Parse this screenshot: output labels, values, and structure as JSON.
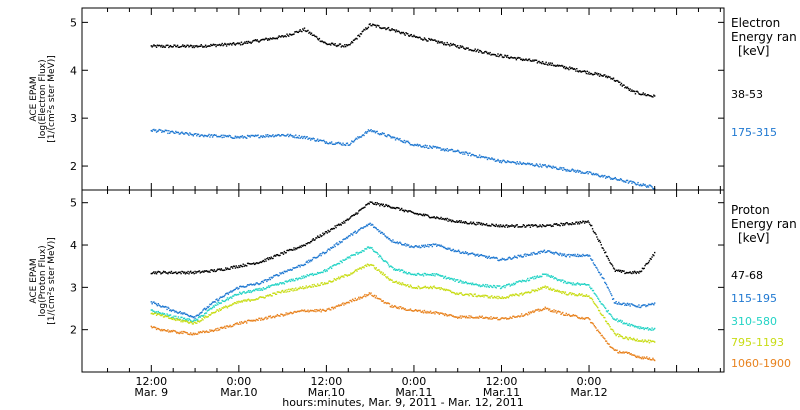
{
  "chart_data": [
    {
      "type": "scatter",
      "panel": "electron",
      "ylabel_lines": [
        "ACE EPAM",
        "log(Electron Flux)",
        "[1/(cm²s ster MeV)]"
      ],
      "ylim": [
        1.5,
        5.3
      ],
      "yticks": [
        2,
        3,
        4,
        5
      ],
      "legend_title": [
        "Electron",
        "Energy ran"
      ],
      "legend_unit": "[keV]",
      "x": [
        0,
        6,
        12,
        18,
        21,
        24,
        27,
        30,
        33,
        36,
        42,
        48,
        54,
        60,
        63,
        66,
        69
      ],
      "series": [
        {
          "name": "38-53",
          "color": "#000000",
          "values": [
            4.5,
            4.5,
            4.55,
            4.7,
            4.85,
            4.55,
            4.5,
            4.95,
            4.85,
            4.7,
            4.5,
            4.3,
            4.15,
            3.95,
            3.85,
            3.55,
            3.45
          ]
        },
        {
          "name": "175-315",
          "color": "#1f78d1",
          "values": [
            2.75,
            2.65,
            2.6,
            2.65,
            2.6,
            2.5,
            2.45,
            2.75,
            2.6,
            2.45,
            2.3,
            2.1,
            2.0,
            1.85,
            1.75,
            1.65,
            1.55
          ]
        }
      ]
    },
    {
      "type": "scatter",
      "panel": "proton",
      "ylabel_lines": [
        "ACE EPAM",
        "log(Proton Flux)",
        "[1/(cm²s ster MeV)]"
      ],
      "ylim": [
        1.0,
        5.3
      ],
      "yticks": [
        2,
        3,
        4,
        5
      ],
      "legend_title": [
        "Proton",
        "Energy ran"
      ],
      "legend_unit": "[keV]",
      "x": [
        0,
        3,
        6,
        9,
        12,
        15,
        18,
        21,
        24,
        27,
        30,
        33,
        36,
        39,
        42,
        45,
        48,
        51,
        54,
        57,
        60,
        62,
        63.5,
        65,
        67,
        69
      ],
      "series": [
        {
          "name": "47-68",
          "color": "#000000",
          "values": [
            3.35,
            3.35,
            3.35,
            3.4,
            3.5,
            3.6,
            3.8,
            4.0,
            4.3,
            4.6,
            5.0,
            4.9,
            4.75,
            4.65,
            4.55,
            4.5,
            4.45,
            4.45,
            4.45,
            4.5,
            4.55,
            3.9,
            3.4,
            3.35,
            3.35,
            3.8
          ]
        },
        {
          "name": "115-195",
          "color": "#1f78d1",
          "values": [
            2.65,
            2.45,
            2.3,
            2.7,
            3.0,
            3.1,
            3.35,
            3.55,
            3.85,
            4.2,
            4.5,
            4.1,
            3.95,
            4.0,
            3.85,
            3.75,
            3.65,
            3.75,
            3.85,
            3.75,
            3.75,
            3.2,
            2.65,
            2.6,
            2.55,
            2.6
          ]
        },
        {
          "name": "310-580",
          "color": "#22d3c5",
          "values": [
            2.45,
            2.3,
            2.2,
            2.6,
            2.85,
            2.95,
            3.1,
            3.25,
            3.4,
            3.7,
            3.95,
            3.45,
            3.3,
            3.3,
            3.15,
            3.05,
            3.0,
            3.15,
            3.3,
            3.1,
            3.05,
            2.55,
            2.25,
            2.15,
            2.05,
            2.0
          ]
        },
        {
          "name": "795-1193",
          "color": "#c8dc14",
          "values": [
            2.4,
            2.25,
            2.15,
            2.45,
            2.65,
            2.75,
            2.9,
            3.0,
            3.1,
            3.3,
            3.55,
            3.15,
            3.0,
            3.0,
            2.85,
            2.8,
            2.75,
            2.85,
            3.0,
            2.85,
            2.8,
            2.3,
            1.9,
            1.8,
            1.75,
            1.7
          ]
        },
        {
          "name": "1060-1900",
          "color": "#e8821e",
          "values": [
            2.05,
            1.95,
            1.9,
            2.0,
            2.15,
            2.25,
            2.35,
            2.45,
            2.45,
            2.65,
            2.85,
            2.55,
            2.45,
            2.4,
            2.3,
            2.3,
            2.25,
            2.35,
            2.5,
            2.35,
            2.25,
            1.8,
            1.5,
            1.45,
            1.35,
            1.3
          ]
        }
      ]
    }
  ],
  "x_axis": {
    "xlim": [
      -9.5,
      78.5
    ],
    "title": "hours:minutes, Mar. 9, 2011 - Mar. 12, 2011",
    "major_ticks": [
      {
        "x": 0,
        "time": "12:00",
        "date": "Mar. 9"
      },
      {
        "x": 12,
        "time": "0:00",
        "date": "Mar.10"
      },
      {
        "x": 24,
        "time": "12:00",
        "date": "Mar.10"
      },
      {
        "x": 36,
        "time": "0:00",
        "date": "Mar.11"
      },
      {
        "x": 48,
        "time": "12:00",
        "date": "Mar.11"
      },
      {
        "x": 60,
        "time": "0:00",
        "date": "Mar.12"
      }
    ]
  }
}
